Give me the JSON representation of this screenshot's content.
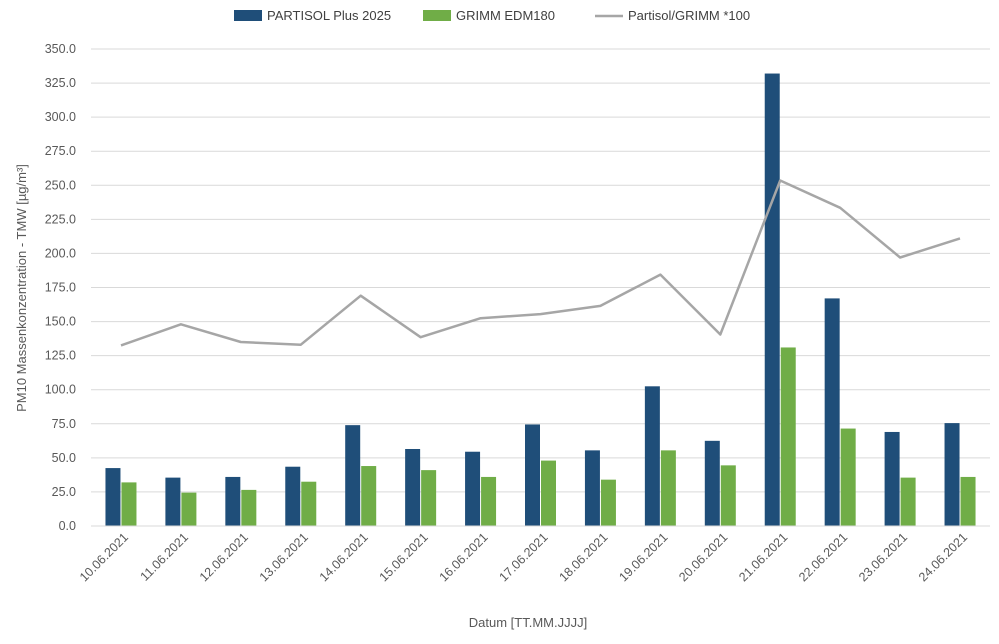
{
  "chart_data": {
    "type": "bar",
    "title": "",
    "xlabel": "Datum [TT.MM.JJJJ]",
    "ylabel": "PM10 Massenkonzentration - TMW [µg/m³]",
    "ylim": [
      0,
      350
    ],
    "ytick_step": 25,
    "ytick_labels": [
      "0.0",
      "25.0",
      "50.0",
      "75.0",
      "100.0",
      "125.0",
      "150.0",
      "175.0",
      "200.0",
      "225.0",
      "250.0",
      "275.0",
      "300.0",
      "325.0",
      "350.0"
    ],
    "grid": true,
    "legend_position": "top-center",
    "categories": [
      "10.06.2021",
      "11.06.2021",
      "12.06.2021",
      "13.06.2021",
      "14.06.2021",
      "15.06.2021",
      "16.06.2021",
      "17.06.2021",
      "18.06.2021",
      "19.06.2021",
      "20.06.2021",
      "21.06.2021",
      "22.06.2021",
      "23.06.2021",
      "24.06.2021"
    ],
    "series": [
      {
        "name": "PARTISOL Plus 2025",
        "type": "bar",
        "color": "#1f4e79",
        "values": [
          42.5,
          35.5,
          36.0,
          43.5,
          74.0,
          56.5,
          54.5,
          74.5,
          55.5,
          102.5,
          62.5,
          332.0,
          167.0,
          69.0,
          75.5
        ]
      },
      {
        "name": "GRIMM EDM180",
        "type": "bar",
        "color": "#70ad47",
        "values": [
          32.0,
          24.5,
          26.5,
          32.5,
          44.0,
          41.0,
          36.0,
          48.0,
          34.0,
          55.5,
          44.5,
          131.0,
          71.5,
          35.5,
          36.0
        ]
      },
      {
        "name": "Partisol/GRIMM *100",
        "type": "line",
        "color": "#a6a6a6",
        "values": [
          132.5,
          148.0,
          135.0,
          133.0,
          169.0,
          138.5,
          152.5,
          155.5,
          161.5,
          184.5,
          140.5,
          253.5,
          233.5,
          197.0,
          211.0
        ]
      }
    ]
  }
}
